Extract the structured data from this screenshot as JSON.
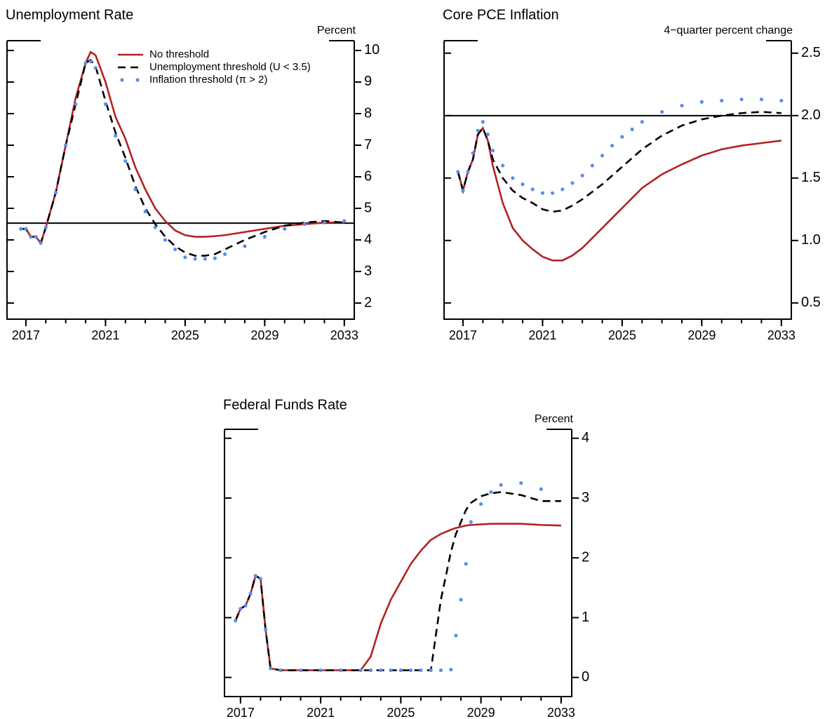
{
  "chart_data": [
    {
      "type": "line",
      "title": "Unemployment Rate",
      "y_label": "Percent",
      "xlim": [
        2016.05,
        2033.5
      ],
      "xticks": [
        2017,
        2021,
        2025,
        2029,
        2033
      ],
      "xminorticks": [
        2017,
        2018,
        2019,
        2020,
        2021,
        2022,
        2023,
        2024,
        2025,
        2026,
        2027,
        2028,
        2029,
        2030,
        2031,
        2032,
        2033
      ],
      "ylim": [
        1.49,
        10.31
      ],
      "yticks": [
        2,
        3,
        4,
        5,
        6,
        7,
        8,
        9,
        10
      ],
      "hline": 4.53,
      "legend": "top",
      "x": [
        2016.75,
        2017,
        2017.25,
        2017.5,
        2017.75,
        2018,
        2018.5,
        2019,
        2019.5,
        2020,
        2020.25,
        2020.5,
        2021,
        2021.5,
        2022,
        2022.5,
        2023,
        2023.5,
        2024,
        2024.5,
        2025,
        2025.5,
        2026,
        2026.5,
        2027,
        2028,
        2029,
        2030,
        2031,
        2032,
        2033
      ],
      "series": [
        {
          "name": "No threshold",
          "color": "#b22222",
          "style": "solid",
          "values": [
            4.35,
            4.35,
            4.1,
            4.1,
            3.9,
            4.4,
            5.5,
            7.0,
            8.5,
            9.6,
            9.95,
            9.85,
            9.0,
            7.9,
            7.2,
            6.3,
            5.6,
            5.0,
            4.6,
            4.3,
            4.15,
            4.1,
            4.1,
            4.12,
            4.15,
            4.25,
            4.35,
            4.45,
            4.5,
            4.55,
            4.55
          ]
        },
        {
          "name": "Unemployment threshold (U < 3.5)",
          "color": "#000000",
          "style": "dashed",
          "values": [
            4.35,
            4.35,
            4.1,
            4.1,
            3.9,
            4.4,
            5.5,
            7.0,
            8.3,
            9.6,
            9.7,
            9.5,
            8.4,
            7.4,
            6.6,
            5.7,
            5.0,
            4.5,
            4.1,
            3.8,
            3.6,
            3.5,
            3.5,
            3.55,
            3.7,
            4.0,
            4.25,
            4.45,
            4.55,
            4.6,
            4.55
          ]
        },
        {
          "name": "Inflation threshold (π > 2)",
          "color": "#5b8def",
          "style": "dotted",
          "values": [
            4.35,
            4.35,
            4.1,
            4.1,
            3.9,
            4.4,
            5.5,
            7.0,
            8.3,
            9.6,
            9.65,
            9.45,
            8.3,
            7.3,
            6.5,
            5.6,
            4.9,
            4.4,
            4.0,
            3.7,
            3.45,
            3.4,
            3.4,
            3.42,
            3.55,
            3.8,
            4.1,
            4.35,
            4.5,
            4.55,
            4.6
          ]
        }
      ]
    },
    {
      "type": "line",
      "title": "Core PCE Inflation",
      "y_label": "4−quarter percent change",
      "xlim": [
        2016.05,
        2033.5
      ],
      "xticks": [
        2017,
        2021,
        2025,
        2029,
        2033
      ],
      "xminorticks": [
        2017,
        2018,
        2019,
        2020,
        2021,
        2022,
        2023,
        2024,
        2025,
        2026,
        2027,
        2028,
        2029,
        2030,
        2031,
        2032,
        2033
      ],
      "ylim": [
        0.37,
        2.6
      ],
      "yticks": [
        0.5,
        {
          "value": 1,
          "label": "1.0"
        },
        1.5,
        {
          "value": 2,
          "label": "2.0"
        },
        2.5
      ],
      "hline": 2.0,
      "x": [
        2016.75,
        2017,
        2017.25,
        2017.5,
        2017.75,
        2018,
        2018.25,
        2018.5,
        2019,
        2019.5,
        2020,
        2020.5,
        2021,
        2021.5,
        2022,
        2022.5,
        2023,
        2023.5,
        2024,
        2024.5,
        2025,
        2025.5,
        2026,
        2027,
        2028,
        2029,
        2030,
        2031,
        2032,
        2033
      ],
      "series": [
        {
          "color": "#b22222",
          "style": "solid",
          "values": [
            1.55,
            1.4,
            1.55,
            1.65,
            1.85,
            1.9,
            1.8,
            1.6,
            1.3,
            1.1,
            1.0,
            0.93,
            0.87,
            0.84,
            0.84,
            0.88,
            0.94,
            1.02,
            1.1,
            1.18,
            1.26,
            1.34,
            1.42,
            1.53,
            1.61,
            1.68,
            1.73,
            1.76,
            1.78,
            1.8
          ]
        },
        {
          "color": "#000000",
          "style": "dashed",
          "values": [
            1.55,
            1.4,
            1.55,
            1.65,
            1.85,
            1.9,
            1.8,
            1.65,
            1.5,
            1.4,
            1.34,
            1.3,
            1.25,
            1.23,
            1.24,
            1.28,
            1.33,
            1.39,
            1.45,
            1.52,
            1.59,
            1.66,
            1.73,
            1.84,
            1.92,
            1.97,
            2.0,
            2.02,
            2.03,
            2.02
          ]
        },
        {
          "color": "#5b8def",
          "style": "dotted",
          "values": [
            1.55,
            1.4,
            1.55,
            1.7,
            1.88,
            1.95,
            1.85,
            1.72,
            1.6,
            1.5,
            1.45,
            1.41,
            1.38,
            1.38,
            1.41,
            1.46,
            1.52,
            1.6,
            1.68,
            1.76,
            1.83,
            1.89,
            1.95,
            2.03,
            2.08,
            2.11,
            2.12,
            2.13,
            2.13,
            2.12
          ]
        }
      ]
    },
    {
      "type": "line",
      "title": "Federal Funds Rate",
      "y_label": "Percent",
      "xlim": [
        2016.2,
        2033.53
      ],
      "xticks": [
        2017,
        2021,
        2025,
        2029,
        2033
      ],
      "xminorticks": [
        2017,
        2018,
        2019,
        2020,
        2021,
        2022,
        2023,
        2024,
        2025,
        2026,
        2027,
        2028,
        2029,
        2030,
        2031,
        2032,
        2033
      ],
      "ylim": [
        -0.32,
        4.15
      ],
      "yticks": [
        0,
        1,
        2,
        3,
        4
      ],
      "x": [
        2016.75,
        2017,
        2017.25,
        2017.5,
        2017.75,
        2018,
        2018.25,
        2018.5,
        2019,
        2020,
        2021,
        2022,
        2023,
        2023.5,
        2024,
        2024.5,
        2025,
        2025.5,
        2026,
        2026.5,
        2027,
        2027.5,
        2027.75,
        2028,
        2028.25,
        2028.5,
        2029,
        2029.5,
        2030,
        2031,
        2032,
        2033
      ],
      "series": [
        {
          "color": "#b22222",
          "style": "solid",
          "values": [
            0.95,
            1.15,
            1.2,
            1.4,
            1.7,
            1.65,
            0.8,
            0.15,
            0.12,
            0.12,
            0.12,
            0.12,
            0.12,
            0.35,
            0.9,
            1.3,
            1.6,
            1.9,
            2.12,
            2.3,
            2.4,
            2.47,
            2.5,
            2.52,
            2.54,
            2.55,
            2.56,
            2.57,
            2.57,
            2.57,
            2.55,
            2.54
          ]
        },
        {
          "color": "#000000",
          "style": "dashed",
          "values": [
            0.95,
            1.15,
            1.2,
            1.4,
            1.7,
            1.65,
            0.8,
            0.15,
            0.12,
            0.12,
            0.12,
            0.12,
            0.12,
            0.12,
            0.12,
            0.12,
            0.12,
            0.12,
            0.12,
            0.12,
            1.3,
            2.1,
            2.4,
            2.6,
            2.8,
            2.92,
            3.03,
            3.08,
            3.1,
            3.05,
            2.95,
            2.95
          ]
        },
        {
          "color": "#5b8def",
          "style": "dotted",
          "values": [
            0.95,
            1.15,
            1.2,
            1.4,
            1.7,
            1.65,
            0.8,
            0.15,
            0.12,
            0.12,
            0.12,
            0.12,
            0.12,
            0.12,
            0.12,
            0.12,
            0.12,
            0.12,
            0.12,
            0.12,
            0.12,
            0.13,
            0.7,
            1.3,
            1.9,
            2.6,
            2.9,
            3.1,
            3.22,
            3.25,
            3.15,
            null
          ]
        }
      ]
    }
  ]
}
